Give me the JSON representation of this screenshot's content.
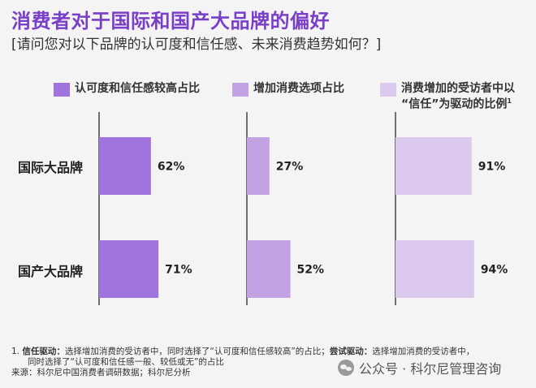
{
  "title": "消费者对于国际和国产大品牌的偏好",
  "subtitle": "[请问您对以下品牌的认可度和信任感、未来消费趋势如何？]",
  "chart_data": {
    "type": "bar",
    "orientation": "horizontal",
    "title": "消费者对于国际和国产大品牌的偏好",
    "categories": [
      "国际大品牌",
      "国产大品牌"
    ],
    "series": [
      {
        "name": "认可度和信任感较高占比",
        "values": [
          62,
          71
        ],
        "labels": [
          "62%",
          "71%"
        ],
        "color": "#a074dc"
      },
      {
        "name": "增加消费选项占比",
        "values": [
          27,
          52
        ],
        "labels": [
          "27%",
          "52%"
        ],
        "color": "#c3a2e4"
      },
      {
        "name": "消费增加的受访者中以“信任”为驱动的比例",
        "values": [
          91,
          94
        ],
        "labels": [
          "91%",
          "94%"
        ],
        "color": "#dccaee"
      }
    ],
    "unit": "%",
    "xlim": [
      0,
      100
    ]
  },
  "legend": {
    "s1": "认可度和信任感较高占比",
    "s2": "增加消费选项占比",
    "s3_line1": "消费增加的受访者中以",
    "s3_line2": "“信任”为驱动的比例",
    "s3_sup": "1"
  },
  "footnote": {
    "line1_num": "1.",
    "line1_label1": "信任驱动：",
    "line1_text1": "选择增加消费的受访者中，同时选择了“认可度和信任感较高”的占比；",
    "line1_label2": "尝试驱动：",
    "line1_text2": "选择增加消费的受访者中，",
    "line2": "同时选择了“认可度和信任感一般、较低或无”的占比",
    "source": "来源：科尔尼中国消费者调研数据；科尔尼分析"
  },
  "watermark": "公众号 · 科尔尼管理咨询",
  "watermark_icon": "wechat-icon"
}
